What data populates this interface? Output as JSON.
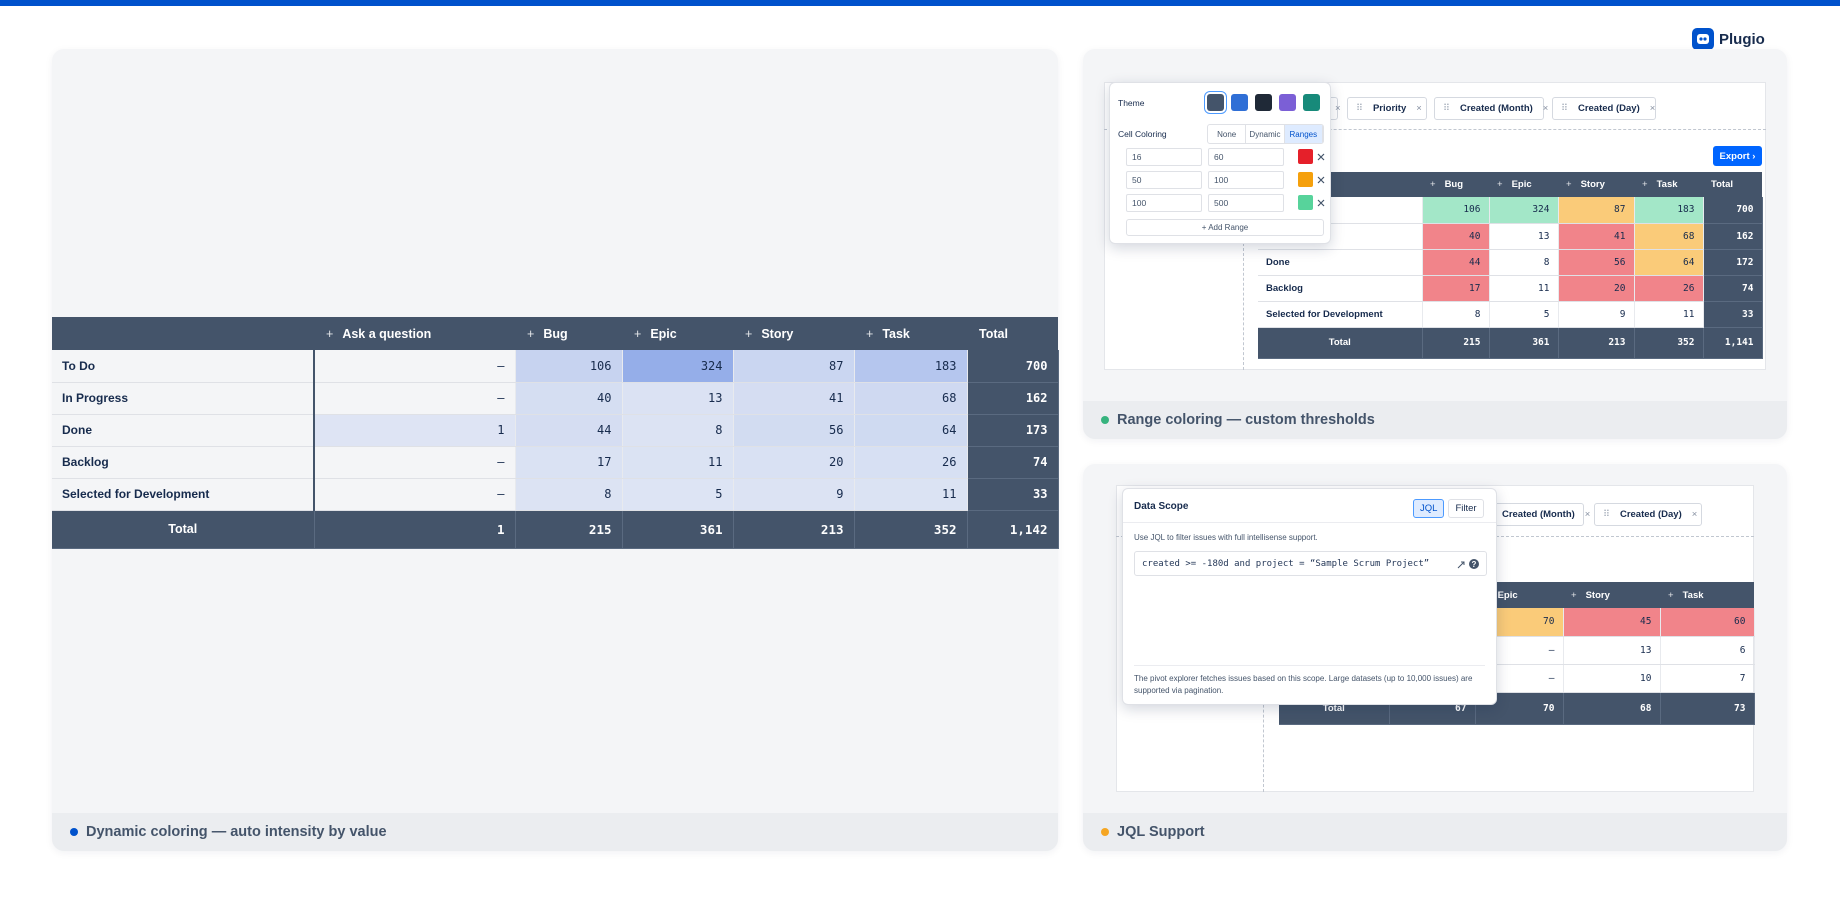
{
  "brand": "Plugio",
  "panels": [
    {
      "caption": "Dynamic coloring — auto intensity by value",
      "dot_color": "#0052cc",
      "table": {
        "columns": [
          "Ask a question",
          "Bug",
          "Epic",
          "Story",
          "Task",
          "Total"
        ],
        "rows": [
          {
            "label": "To Do",
            "cells": [
              "–",
              106,
              324,
              87,
              183,
              700
            ]
          },
          {
            "label": "In Progress",
            "cells": [
              "–",
              40,
              13,
              41,
              68,
              162
            ]
          },
          {
            "label": "Done",
            "cells": [
              1,
              44,
              8,
              56,
              64,
              173
            ]
          },
          {
            "label": "Backlog",
            "cells": [
              "–",
              17,
              11,
              20,
              26,
              74
            ]
          },
          {
            "label": "Selected for Development",
            "cells": [
              "–",
              8,
              5,
              9,
              11,
              33
            ]
          }
        ],
        "total": {
          "label": "Total",
          "cells": [
            1,
            215,
            361,
            213,
            352,
            "1,142"
          ]
        }
      }
    },
    {
      "caption": "Range coloring — custom thresholds",
      "dot_color": "#36b37e",
      "filters": [
        "Priority",
        "Created (Month)",
        "Created (Day)"
      ],
      "export": "Export ›",
      "table": {
        "columns": [
          "Bug",
          "Epic",
          "Story",
          "Task",
          "Total"
        ],
        "rows": [
          {
            "label": null,
            "cells": [
              106,
              324,
              87,
              183,
              700
            ]
          },
          {
            "label": null,
            "cells": [
              40,
              13,
              41,
              68,
              162
            ]
          },
          {
            "label": "Done",
            "cells": [
              44,
              8,
              56,
              64,
              172
            ]
          },
          {
            "label": "Backlog",
            "cells": [
              17,
              11,
              20,
              26,
              74
            ]
          },
          {
            "label": "Selected for Development",
            "cells": [
              8,
              5,
              9,
              11,
              33
            ]
          }
        ],
        "total": {
          "label": "Total",
          "cells": [
            215,
            361,
            213,
            352,
            "1,141"
          ]
        }
      },
      "popup": {
        "theme_label": "Theme",
        "theme_colors": [
          "#44546a",
          "#2f6fd6",
          "#1f2937",
          "#7b5fd6",
          "#178a7a"
        ],
        "theme_selected": "#44546a",
        "coloring_label": "Cell Coloring",
        "coloring_options": [
          "None",
          "Dynamic",
          "Ranges"
        ],
        "coloring_selected": "Ranges",
        "ranges": [
          {
            "min": 16,
            "max": 60,
            "color": "#e5202a"
          },
          {
            "min": 50,
            "max": 100,
            "color": "#f5a00c"
          },
          {
            "min": 100,
            "max": 500,
            "color": "#57d39b"
          }
        ],
        "add_range": "+ Add Range"
      }
    },
    {
      "caption": "JQL Support",
      "dot_color": "#f5a623",
      "filters": [
        "Created (Month)",
        "Created (Day)"
      ],
      "table": {
        "columns": [
          null,
          "Epic",
          "Story",
          "Task"
        ],
        "rows": [
          {
            "cells": [
              null,
              70,
              45,
              60
            ]
          },
          {
            "cells": [
              null,
              "–",
              13,
              6
            ]
          },
          {
            "cells": [
              null,
              "–",
              10,
              7
            ]
          }
        ],
        "total": {
          "label": "Total",
          "cells": [
            67,
            70,
            68,
            73
          ]
        }
      },
      "popup": {
        "title": "Data Scope",
        "tabs": [
          "JQL",
          "Filter"
        ],
        "tab_selected": "JQL",
        "hint": "Use JQL to filter issues with full intellisense support.",
        "jql": "created >= -180d and project = “Sample Scrum Project”",
        "note": "The pivot explorer fetches issues based on this scope. Large datasets (up to 10,000 issues) are supported via pagination."
      }
    }
  ]
}
